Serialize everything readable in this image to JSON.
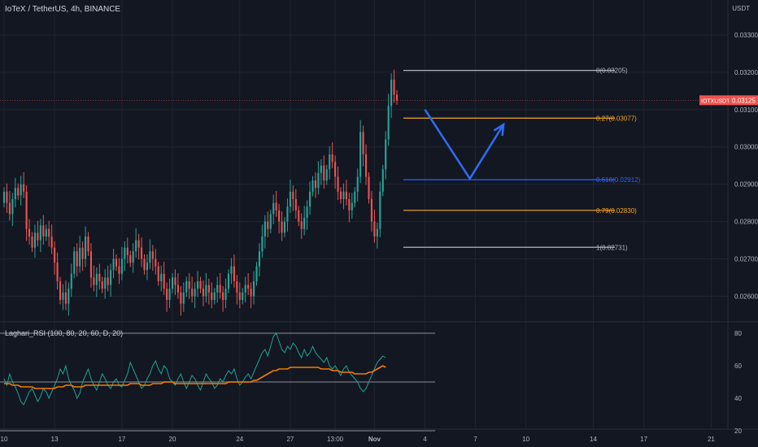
{
  "header": {
    "symbol_title": "IoTeX / TetherUS, 4h, BINANCE",
    "currency": "USDT"
  },
  "indicator": {
    "title": "Laghari_RSI (100, 80, 20, 60, D, 20)"
  },
  "colors": {
    "background": "#131722",
    "up": "#26a69a",
    "down": "#ef5350",
    "fib_orange": "#f5a623",
    "fib_blue": "#2962ff",
    "fib_gray": "#b2b5be",
    "arrow": "#2f6cf6",
    "rsi_fast": "#1fa38f",
    "rsi_slow": "#f57c00"
  },
  "chart_data": [
    {
      "type": "candlestick",
      "title": "IoTeX / TetherUS, 4h, BINANCE",
      "ylim": [
        0.0254,
        0.0335
      ],
      "y_ticks": [
        {
          "value": 0.033,
          "label": "0.03300"
        },
        {
          "value": 0.032,
          "label": "0.03200"
        },
        {
          "value": 0.031,
          "label": "0.03100"
        },
        {
          "value": 0.03,
          "label": "0.03000"
        },
        {
          "value": 0.029,
          "label": "0.02900"
        },
        {
          "value": 0.028,
          "label": "0.02800"
        },
        {
          "value": 0.027,
          "label": "0.02700"
        },
        {
          "value": 0.026,
          "label": "0.02600"
        }
      ],
      "x_ticks": [
        {
          "label": "10",
          "index": 0
        },
        {
          "label": "13",
          "index": 18
        },
        {
          "label": "17",
          "index": 42
        },
        {
          "label": "20",
          "index": 60
        },
        {
          "label": "24",
          "index": 84
        },
        {
          "label": "27",
          "index": 102
        },
        {
          "label": "13:00",
          "index": 118
        },
        {
          "label": "Nov",
          "index": 132
        },
        {
          "label": "4",
          "index": 150
        },
        {
          "label": "7",
          "index": 168
        },
        {
          "label": "10",
          "index": 186
        },
        {
          "label": "14",
          "index": 210
        },
        {
          "label": "17",
          "index": 228
        },
        {
          "label": "21",
          "index": 252
        }
      ],
      "closes": [
        0.0288,
        0.0285,
        0.0282,
        0.0286,
        0.0289,
        0.0287,
        0.029,
        0.0288,
        0.0278,
        0.0276,
        0.0273,
        0.0277,
        0.0275,
        0.0279,
        0.0276,
        0.0278,
        0.0276,
        0.0273,
        0.0269,
        0.0264,
        0.0259,
        0.0261,
        0.0258,
        0.0262,
        0.0266,
        0.0272,
        0.0268,
        0.0273,
        0.027,
        0.0276,
        0.0272,
        0.0265,
        0.0263,
        0.0266,
        0.0264,
        0.0262,
        0.0265,
        0.0263,
        0.0267,
        0.027,
        0.0268,
        0.0266,
        0.027,
        0.0273,
        0.0271,
        0.0269,
        0.0272,
        0.0275,
        0.0273,
        0.027,
        0.0267,
        0.0269,
        0.0272,
        0.027,
        0.0268,
        0.0264,
        0.0266,
        0.0262,
        0.0259,
        0.0262,
        0.0265,
        0.0263,
        0.0261,
        0.0258,
        0.0261,
        0.0264,
        0.0262,
        0.026,
        0.0262,
        0.0264,
        0.0262,
        0.026,
        0.0263,
        0.0261,
        0.0259,
        0.0261,
        0.0263,
        0.0261,
        0.0259,
        0.0262,
        0.0266,
        0.0268,
        0.0264,
        0.0261,
        0.0259,
        0.0261,
        0.0263,
        0.0262,
        0.026,
        0.0264,
        0.0268,
        0.0272,
        0.0276,
        0.028,
        0.0278,
        0.0282,
        0.0285,
        0.0283,
        0.028,
        0.0277,
        0.028,
        0.0284,
        0.0288,
        0.0286,
        0.0283,
        0.028,
        0.0278,
        0.0281,
        0.0284,
        0.0288,
        0.0291,
        0.0289,
        0.0293,
        0.0295,
        0.0291,
        0.0294,
        0.0298,
        0.0296,
        0.0292,
        0.0288,
        0.0286,
        0.0288,
        0.0286,
        0.0283,
        0.0285,
        0.0288,
        0.0292,
        0.0304,
        0.0298,
        0.0292,
        0.0286,
        0.028,
        0.0276,
        0.0278,
        0.0288,
        0.0294,
        0.0302,
        0.0311,
        0.0318,
        0.0314,
        0.03125
      ],
      "last_price": {
        "value": 0.03125,
        "label": "0.03125",
        "symbol": "IOTXUSDT"
      },
      "fib_levels": [
        {
          "level": "0",
          "price": 0.03205,
          "label": "0(0.03205)"
        },
        {
          "level": "0.27",
          "price": 0.03077,
          "label": "0.27(0.03077)"
        },
        {
          "level": "0.618",
          "price": 0.02912,
          "label": "0.618(0.02912)"
        },
        {
          "level": "0.79",
          "price": 0.0283,
          "label": "0.79(0.02830)"
        },
        {
          "level": "1",
          "price": 0.02731,
          "label": "1(0.02731)"
        }
      ],
      "projection_arrow": [
        {
          "index": 150,
          "price": 0.031
        },
        {
          "index": 166,
          "price": 0.02915
        },
        {
          "index": 178,
          "price": 0.0306
        }
      ]
    },
    {
      "type": "line",
      "title": "Laghari_RSI (100, 80, 20, 60, D, 20)",
      "ylim": [
        15,
        85
      ],
      "y_ticks": [
        80,
        60,
        40,
        20
      ],
      "levels": [
        80,
        50,
        20
      ],
      "series": [
        {
          "values": [
            52,
            48,
            55,
            50,
            47,
            43,
            38,
            36,
            40,
            44,
            46,
            42,
            38,
            41,
            46,
            44,
            40,
            44,
            48,
            52,
            58,
            55,
            60,
            52,
            48,
            45,
            40,
            43,
            50,
            54,
            58,
            52,
            48,
            45,
            50,
            55,
            52,
            48,
            46,
            50,
            52,
            48,
            47,
            51,
            55,
            62,
            58,
            54,
            50,
            46,
            48,
            52,
            55,
            60,
            63,
            58,
            55,
            60,
            58,
            52,
            50,
            48,
            52,
            55,
            50,
            46,
            50,
            54,
            52,
            48,
            45,
            50,
            55,
            52,
            50,
            46,
            48,
            52,
            50,
            54,
            57,
            55,
            58,
            52,
            48,
            50,
            53,
            55,
            52,
            56,
            60,
            64,
            68,
            70,
            66,
            72,
            78,
            80,
            75,
            70,
            68,
            72,
            70,
            74,
            72,
            68,
            65,
            70,
            66,
            68,
            72,
            68,
            66,
            64,
            62,
            65,
            60,
            58,
            60,
            57,
            54,
            58,
            60,
            56,
            54,
            52,
            50,
            46,
            44,
            46,
            50,
            54,
            58,
            62,
            64,
            66,
            65
          ]
        },
        {
          "values": [
            49,
            49,
            49,
            48,
            48,
            48,
            47,
            47,
            47,
            47,
            47,
            46,
            46,
            46,
            46,
            46,
            46,
            46,
            46,
            47,
            47,
            47,
            48,
            48,
            48,
            47,
            47,
            47,
            47,
            48,
            48,
            48,
            48,
            48,
            48,
            48,
            48,
            48,
            48,
            48,
            48,
            48,
            48,
            48,
            48,
            49,
            49,
            49,
            49,
            48,
            48,
            48,
            48,
            49,
            49,
            49,
            49,
            50,
            50,
            50,
            50,
            49,
            49,
            49,
            49,
            49,
            49,
            49,
            49,
            49,
            49,
            49,
            49,
            49,
            49,
            49,
            49,
            49,
            49,
            49,
            50,
            50,
            50,
            50,
            50,
            50,
            50,
            50,
            50,
            51,
            51,
            52,
            53,
            54,
            55,
            56,
            57,
            57,
            58,
            58,
            58,
            58,
            59,
            59,
            59,
            59,
            59,
            59,
            59,
            59,
            59,
            59,
            59,
            58,
            58,
            58,
            58,
            57,
            57,
            57,
            56,
            56,
            56,
            56,
            56,
            55,
            55,
            55,
            55,
            55,
            56,
            56,
            57,
            58,
            59,
            60,
            59
          ]
        }
      ]
    }
  ]
}
